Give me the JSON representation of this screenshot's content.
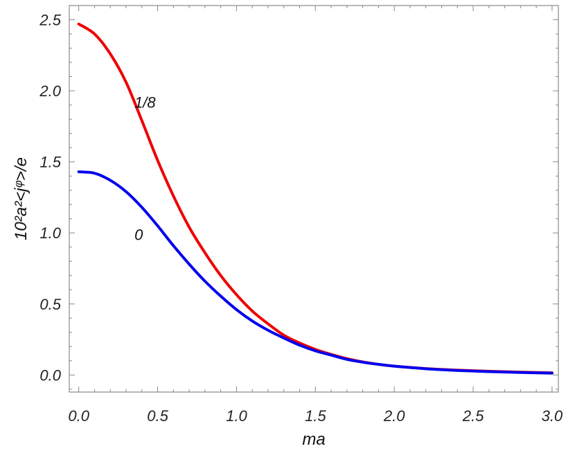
{
  "chart_data": {
    "type": "line",
    "title": "",
    "xlabel": "ma",
    "ylabel": "10²a²<jᵠ>/e",
    "xlim": [
      -0.06,
      3.04
    ],
    "ylim": [
      -0.12,
      2.6
    ],
    "x_ticks": [
      "0.0",
      "0.5",
      "1.0",
      "1.5",
      "2.0",
      "2.5",
      "3.0"
    ],
    "y_ticks": [
      "0.0",
      "0.5",
      "1.0",
      "1.5",
      "2.0",
      "2.5"
    ],
    "grid": false,
    "series": [
      {
        "name": "1/8",
        "color": "#ee0000",
        "x": [
          0.0,
          0.1,
          0.2,
          0.3,
          0.4,
          0.5,
          0.6,
          0.7,
          0.8,
          0.9,
          1.0,
          1.1,
          1.2,
          1.3,
          1.4,
          1.5,
          1.6,
          1.7,
          1.8,
          1.9,
          2.0,
          2.2,
          2.4,
          2.6,
          2.8,
          3.0
        ],
        "y": [
          2.47,
          2.4,
          2.26,
          2.06,
          1.79,
          1.51,
          1.26,
          1.04,
          0.86,
          0.7,
          0.565,
          0.45,
          0.36,
          0.28,
          0.225,
          0.18,
          0.145,
          0.115,
          0.092,
          0.075,
          0.062,
          0.045,
          0.034,
          0.026,
          0.02,
          0.015
        ]
      },
      {
        "name": "0",
        "color": "#0000ee",
        "x": [
          0.0,
          0.1,
          0.2,
          0.3,
          0.4,
          0.5,
          0.6,
          0.7,
          0.8,
          0.9,
          1.0,
          1.1,
          1.2,
          1.3,
          1.4,
          1.5,
          1.6,
          1.7,
          1.8,
          1.9,
          2.0,
          2.2,
          2.4,
          2.6,
          2.8,
          3.0
        ],
        "y": [
          1.43,
          1.42,
          1.37,
          1.29,
          1.18,
          1.05,
          0.91,
          0.78,
          0.66,
          0.555,
          0.46,
          0.38,
          0.315,
          0.26,
          0.21,
          0.17,
          0.14,
          0.11,
          0.09,
          0.075,
          0.062,
          0.044,
          0.032,
          0.024,
          0.018,
          0.013
        ]
      }
    ],
    "annotations": [
      {
        "text": "1/8",
        "x": 0.42,
        "y": 1.88
      },
      {
        "text": "0",
        "x": 0.38,
        "y": 0.95
      }
    ]
  }
}
